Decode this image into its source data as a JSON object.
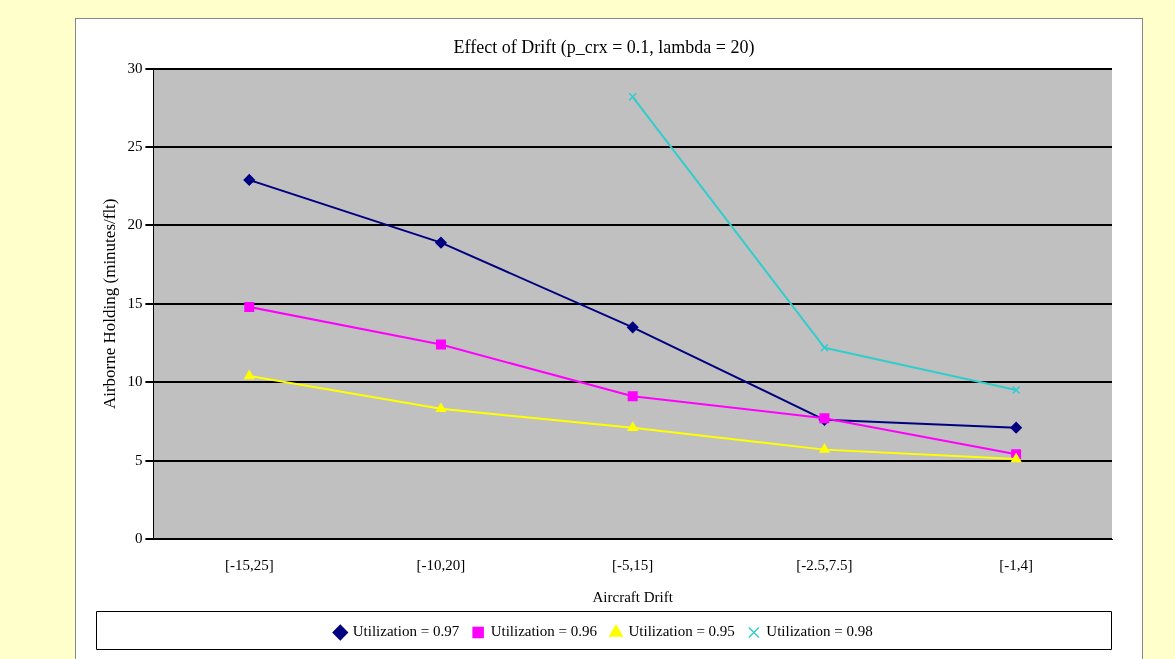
{
  "chart_data": {
    "type": "line",
    "title": "Effect of Drift (p_crx = 0.1, lambda = 20)",
    "xlabel": "Aircraft Drift",
    "ylabel": "Airborne Holding (minutes/flt)",
    "categories": [
      "[-15,25]",
      "[-10,20]",
      "[-5,15]",
      "[-2.5,7.5]",
      "[-1,4]"
    ],
    "series": [
      {
        "name": "Utilization = 0.97",
        "color": "#000080",
        "marker": "diamond",
        "values": [
          22.9,
          18.9,
          13.5,
          7.6,
          7.1
        ]
      },
      {
        "name": "Utilization = 0.96",
        "color": "#ff00ff",
        "marker": "square",
        "values": [
          14.8,
          12.4,
          9.1,
          7.7,
          5.4
        ]
      },
      {
        "name": "Utilization = 0.95",
        "color": "#ffff00",
        "marker": "triangle",
        "values": [
          10.4,
          8.3,
          7.1,
          5.7,
          5.1
        ]
      },
      {
        "name": "Utilization = 0.98",
        "color": "#33cccc",
        "marker": "cross",
        "values": [
          null,
          null,
          28.2,
          12.2,
          9.5
        ]
      }
    ],
    "ylim": [
      0,
      30
    ],
    "yticks": [
      0,
      5,
      10,
      15,
      20,
      25,
      30
    ],
    "grid": "y",
    "legend": "bottom"
  }
}
